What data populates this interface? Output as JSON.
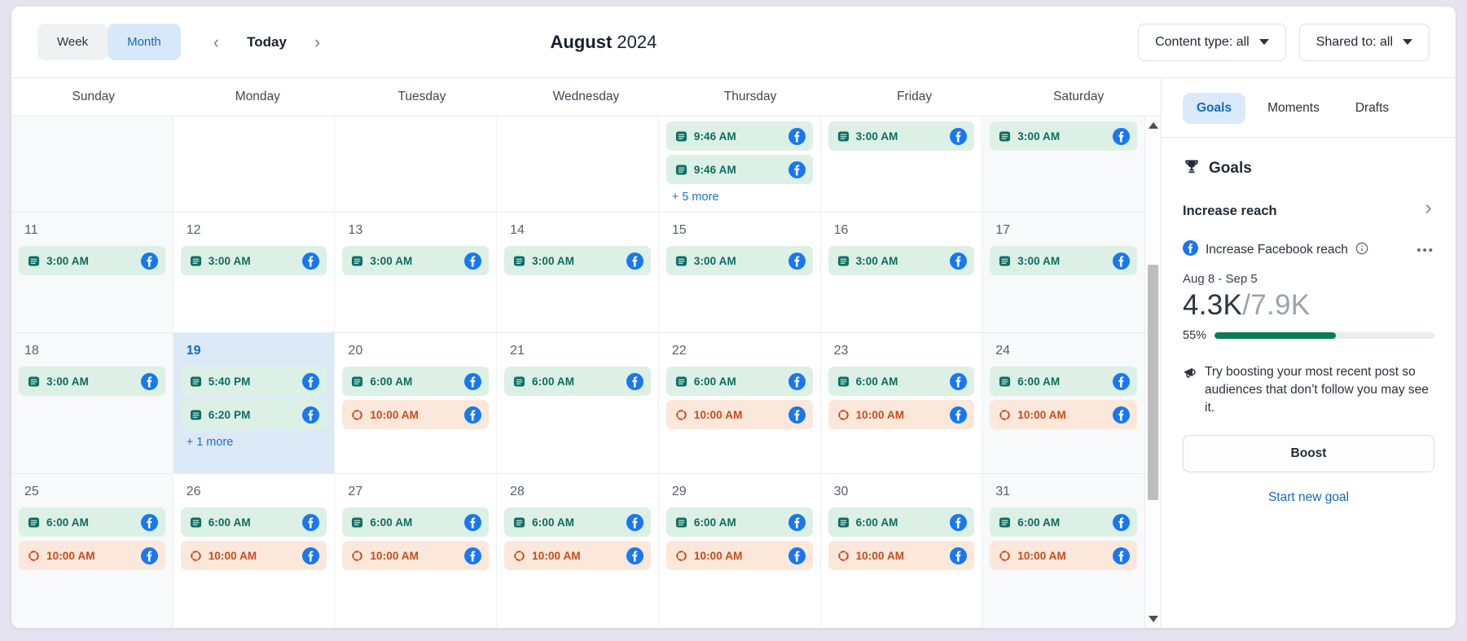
{
  "toolbar": {
    "week_label": "Week",
    "month_label": "Month",
    "today_label": "Today",
    "prev_label": "‹",
    "next_label": "›",
    "title_month": "August",
    "title_year": "2024",
    "content_type_filter": "Content type: all",
    "shared_to_filter": "Shared to: all"
  },
  "calendar": {
    "day_headers": [
      "Sunday",
      "Monday",
      "Tuesday",
      "Wednesday",
      "Thursday",
      "Friday",
      "Saturday"
    ],
    "weeks": [
      {
        "days": [
          {
            "date": "",
            "events": []
          },
          {
            "date": "",
            "events": []
          },
          {
            "date": "",
            "events": []
          },
          {
            "date": "",
            "events": []
          },
          {
            "date": "",
            "events": [
              {
                "time": "9:46 AM",
                "kind": "post",
                "network": "facebook"
              },
              {
                "time": "9:46 AM",
                "kind": "post",
                "network": "facebook"
              }
            ],
            "more": "+ 5 more"
          },
          {
            "date": "",
            "events": [
              {
                "time": "3:00 AM",
                "kind": "post",
                "network": "facebook"
              }
            ]
          },
          {
            "date": "",
            "events": [
              {
                "time": "3:00 AM",
                "kind": "post",
                "network": "facebook"
              }
            ]
          }
        ]
      },
      {
        "days": [
          {
            "date": "11",
            "events": [
              {
                "time": "3:00 AM",
                "kind": "post",
                "network": "facebook"
              }
            ]
          },
          {
            "date": "12",
            "events": [
              {
                "time": "3:00 AM",
                "kind": "post",
                "network": "facebook"
              }
            ]
          },
          {
            "date": "13",
            "events": [
              {
                "time": "3:00 AM",
                "kind": "post",
                "network": "facebook"
              }
            ]
          },
          {
            "date": "14",
            "events": [
              {
                "time": "3:00 AM",
                "kind": "post",
                "network": "facebook"
              }
            ]
          },
          {
            "date": "15",
            "events": [
              {
                "time": "3:00 AM",
                "kind": "post",
                "network": "facebook"
              }
            ]
          },
          {
            "date": "16",
            "events": [
              {
                "time": "3:00 AM",
                "kind": "post",
                "network": "facebook"
              }
            ]
          },
          {
            "date": "17",
            "events": [
              {
                "time": "3:00 AM",
                "kind": "post",
                "network": "facebook"
              }
            ]
          }
        ]
      },
      {
        "days": [
          {
            "date": "18",
            "events": [
              {
                "time": "3:00 AM",
                "kind": "post",
                "network": "facebook"
              }
            ]
          },
          {
            "date": "19",
            "today": true,
            "events": [
              {
                "time": "5:40 PM",
                "kind": "post",
                "network": "facebook"
              },
              {
                "time": "6:20 PM",
                "kind": "post",
                "network": "facebook"
              }
            ],
            "more": "+ 1 more"
          },
          {
            "date": "20",
            "events": [
              {
                "time": "6:00 AM",
                "kind": "post",
                "network": "facebook"
              },
              {
                "time": "10:00 AM",
                "kind": "recurring",
                "network": "facebook"
              }
            ]
          },
          {
            "date": "21",
            "events": [
              {
                "time": "6:00 AM",
                "kind": "post",
                "network": "facebook"
              }
            ]
          },
          {
            "date": "22",
            "events": [
              {
                "time": "6:00 AM",
                "kind": "post",
                "network": "facebook"
              },
              {
                "time": "10:00 AM",
                "kind": "recurring",
                "network": "facebook"
              }
            ]
          },
          {
            "date": "23",
            "events": [
              {
                "time": "6:00 AM",
                "kind": "post",
                "network": "facebook"
              },
              {
                "time": "10:00 AM",
                "kind": "recurring",
                "network": "facebook"
              }
            ]
          },
          {
            "date": "24",
            "events": [
              {
                "time": "6:00 AM",
                "kind": "post",
                "network": "facebook"
              },
              {
                "time": "10:00 AM",
                "kind": "recurring",
                "network": "facebook"
              }
            ]
          }
        ]
      },
      {
        "days": [
          {
            "date": "25",
            "events": [
              {
                "time": "6:00 AM",
                "kind": "post",
                "network": "facebook"
              },
              {
                "time": "10:00 AM",
                "kind": "recurring",
                "network": "facebook"
              }
            ]
          },
          {
            "date": "26",
            "events": [
              {
                "time": "6:00 AM",
                "kind": "post",
                "network": "facebook"
              },
              {
                "time": "10:00 AM",
                "kind": "recurring",
                "network": "facebook"
              }
            ]
          },
          {
            "date": "27",
            "events": [
              {
                "time": "6:00 AM",
                "kind": "post",
                "network": "facebook"
              },
              {
                "time": "10:00 AM",
                "kind": "recurring",
                "network": "facebook"
              }
            ]
          },
          {
            "date": "28",
            "events": [
              {
                "time": "6:00 AM",
                "kind": "post",
                "network": "facebook"
              },
              {
                "time": "10:00 AM",
                "kind": "recurring",
                "network": "facebook"
              }
            ]
          },
          {
            "date": "29",
            "events": [
              {
                "time": "6:00 AM",
                "kind": "post",
                "network": "facebook"
              },
              {
                "time": "10:00 AM",
                "kind": "recurring",
                "network": "facebook"
              }
            ]
          },
          {
            "date": "30",
            "events": [
              {
                "time": "6:00 AM",
                "kind": "post",
                "network": "facebook"
              },
              {
                "time": "10:00 AM",
                "kind": "recurring",
                "network": "facebook"
              }
            ]
          },
          {
            "date": "31",
            "events": [
              {
                "time": "6:00 AM",
                "kind": "post",
                "network": "facebook"
              },
              {
                "time": "10:00 AM",
                "kind": "recurring",
                "network": "facebook"
              }
            ]
          }
        ]
      }
    ]
  },
  "sidebar": {
    "tabs": [
      {
        "label": "Goals",
        "active": true
      },
      {
        "label": "Moments",
        "active": false
      },
      {
        "label": "Drafts",
        "active": false
      }
    ],
    "goals": {
      "heading": "Goals",
      "goal_group": "Increase reach",
      "goal_name": "Increase Facebook reach",
      "menu_dots": "•••",
      "date_range": "Aug 8 - Sep 5",
      "current": "4.3K",
      "target": "/7.9K",
      "percent": "55%",
      "percent_value": 55,
      "tip": "Try boosting your most recent post so audiences that don’t follow you may see it.",
      "boost_label": "Boost",
      "start_new_goal": "Start new goal"
    }
  },
  "colors": {
    "accent_blue": "#1569b8",
    "facebook_blue": "#1877f2",
    "post_chip_bg": "#ddf0e6",
    "post_chip_text": "#0d6b5f",
    "recurring_chip_bg": "#fce8da",
    "recurring_chip_text": "#c74a1e",
    "progress_green": "#0c7b4e",
    "today_cell_bg": "#dce9f6",
    "weekend_cell_bg": "#f7f9fa",
    "page_bg": "#e8e3f0"
  }
}
